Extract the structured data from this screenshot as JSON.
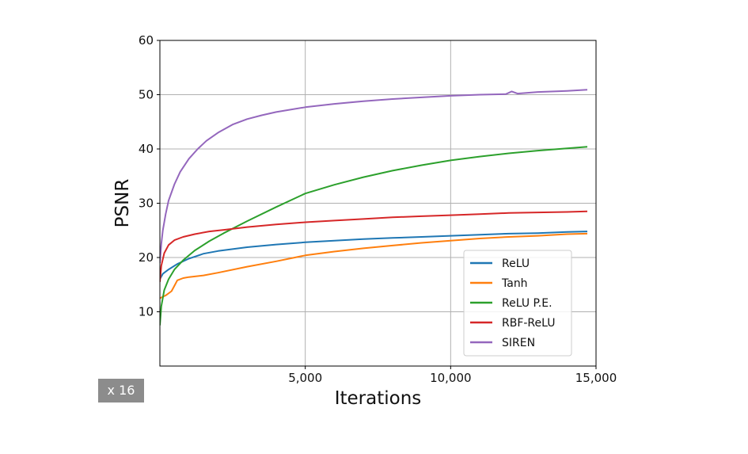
{
  "chart_data": {
    "type": "line",
    "xlabel": "Iterations",
    "ylabel": "PSNR",
    "xlim": [
      0,
      15000
    ],
    "ylim": [
      0,
      60
    ],
    "xticks": [
      5000,
      10000,
      15000
    ],
    "xtick_labels": [
      "5,000",
      "10,000",
      "15,000"
    ],
    "yticks": [
      10,
      20,
      30,
      40,
      50,
      60
    ],
    "ytick_labels": [
      "10",
      "20",
      "30",
      "40",
      "50",
      "60"
    ],
    "grid": true,
    "legend_position": "lower-right",
    "series": [
      {
        "name": "ReLU",
        "color": "#1f77b4",
        "x": [
          0,
          100,
          300,
          600,
          1000,
          1500,
          2000,
          3000,
          4000,
          5000,
          6000,
          7000,
          8000,
          9000,
          10000,
          11000,
          12000,
          13000,
          14000,
          14700
        ],
        "y": [
          16.0,
          17.0,
          17.8,
          18.8,
          19.8,
          20.7,
          21.2,
          21.9,
          22.4,
          22.8,
          23.1,
          23.4,
          23.6,
          23.8,
          24.0,
          24.2,
          24.4,
          24.5,
          24.7,
          24.8
        ]
      },
      {
        "name": "Tanh",
        "color": "#ff7f0e",
        "x": [
          0,
          200,
          400,
          500,
          600,
          800,
          1000,
          1500,
          2000,
          3000,
          4000,
          5000,
          6000,
          7000,
          8000,
          9000,
          10000,
          11000,
          12000,
          13000,
          14000,
          14700
        ],
        "y": [
          12.5,
          13.0,
          13.8,
          14.8,
          15.8,
          16.2,
          16.4,
          16.7,
          17.2,
          18.3,
          19.3,
          20.4,
          21.1,
          21.7,
          22.2,
          22.7,
          23.1,
          23.5,
          23.8,
          24.0,
          24.3,
          24.4
        ]
      },
      {
        "name": "ReLU P.E.",
        "color": "#2ca02c",
        "x": [
          0,
          50,
          150,
          300,
          500,
          800,
          1200,
          1700,
          2200,
          3000,
          4000,
          5000,
          6000,
          7000,
          8000,
          9000,
          10000,
          11000,
          12000,
          13000,
          14000,
          14700
        ],
        "y": [
          7.5,
          11.0,
          14.0,
          16.0,
          17.8,
          19.5,
          21.3,
          23.0,
          24.5,
          26.7,
          29.3,
          31.8,
          33.4,
          34.8,
          36.0,
          37.0,
          37.9,
          38.6,
          39.2,
          39.7,
          40.1,
          40.4
        ]
      },
      {
        "name": "RBF-ReLU",
        "color": "#d62728",
        "x": [
          0,
          50,
          150,
          300,
          500,
          800,
          1200,
          1700,
          2200,
          3000,
          4000,
          5000,
          6000,
          7000,
          8000,
          9000,
          10000,
          11000,
          12000,
          13000,
          14000,
          14700
        ],
        "y": [
          15.5,
          18.5,
          20.8,
          22.3,
          23.2,
          23.8,
          24.3,
          24.8,
          25.1,
          25.6,
          26.1,
          26.5,
          26.8,
          27.1,
          27.4,
          27.6,
          27.8,
          28.0,
          28.2,
          28.3,
          28.4,
          28.5
        ]
      },
      {
        "name": "SIREN",
        "color": "#9467bd",
        "x": [
          0,
          50,
          100,
          200,
          300,
          500,
          700,
          1000,
          1300,
          1600,
          2000,
          2500,
          3000,
          3500,
          4000,
          5000,
          6000,
          7000,
          8000,
          9000,
          10000,
          11000,
          11900,
          12100,
          12300,
          13000,
          14000,
          14700
        ],
        "y": [
          19.0,
          22.5,
          25.0,
          28.0,
          30.5,
          33.5,
          35.8,
          38.2,
          40.0,
          41.5,
          43.0,
          44.5,
          45.5,
          46.2,
          46.8,
          47.7,
          48.3,
          48.8,
          49.2,
          49.5,
          49.8,
          50.0,
          50.1,
          50.6,
          50.2,
          50.5,
          50.7,
          50.9
        ]
      }
    ]
  },
  "badge": {
    "text": "x 16"
  }
}
